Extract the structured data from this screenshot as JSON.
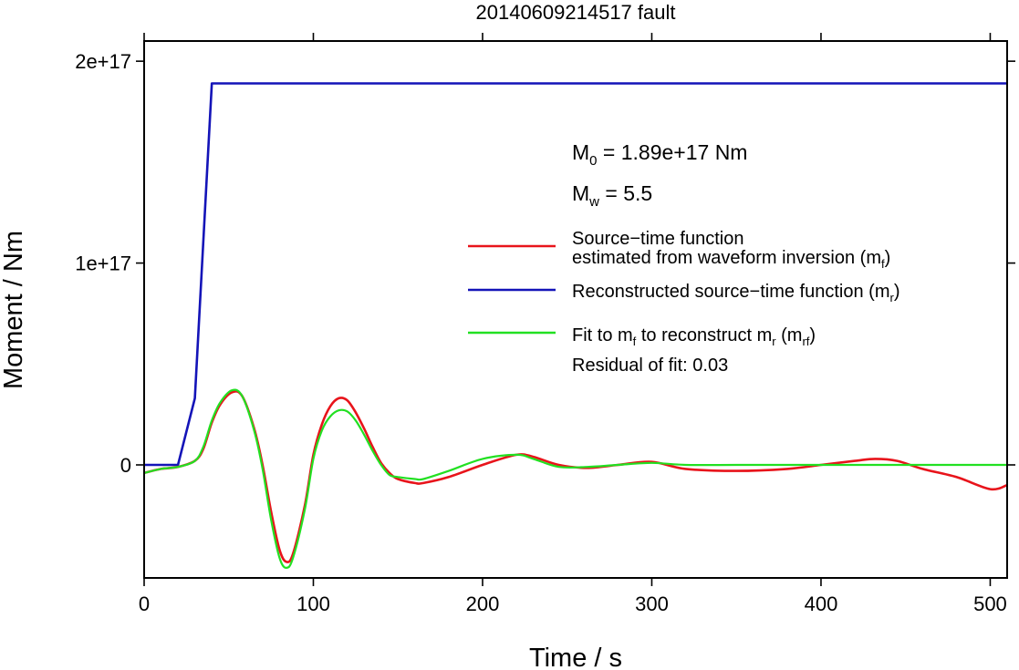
{
  "chart_data": {
    "type": "line",
    "title": "20140609214517 fault",
    "xlabel": "Time / s",
    "ylabel": "Moment / Nm",
    "xlim": [
      0,
      510
    ],
    "ylim": [
      -5.6e+16,
      2.1e+17
    ],
    "grid": false,
    "x_ticks": [
      {
        "value": 0,
        "label": "0"
      },
      {
        "value": 100,
        "label": "100"
      },
      {
        "value": 200,
        "label": "200"
      },
      {
        "value": 300,
        "label": "300"
      },
      {
        "value": 400,
        "label": "400"
      },
      {
        "value": 500,
        "label": "500"
      }
    ],
    "x_top_ticks": [
      0,
      100,
      200,
      300,
      400,
      500
    ],
    "y_ticks": [
      {
        "value": 0,
        "label": "0"
      },
      {
        "value": 1e+17,
        "label": "1e+17"
      },
      {
        "value": 2e+17,
        "label": "2e+17"
      }
    ],
    "annotations": {
      "m0": {
        "sym": "M",
        "sub": "0",
        "rest": " = 1.89e+17 Nm"
      },
      "mw": {
        "sym": "M",
        "sub": "w",
        "rest": " = 5.5"
      },
      "residual": "Residual of fit: 0.03"
    },
    "legend_position": "right",
    "series": [
      {
        "key": "mf",
        "color": "#e8141b",
        "legend": {
          "line1": "Source−time function",
          "line2_a": "estimated from waveform inversion (m",
          "line2_sub": "f",
          "line2_b": ")"
        },
        "x": [
          0,
          10,
          20,
          30,
          35,
          40,
          45,
          52,
          58,
          65,
          70,
          75,
          80,
          84,
          88,
          95,
          100,
          105,
          110,
          115,
          120,
          125,
          130,
          135,
          140,
          145,
          150,
          160,
          165,
          180,
          200,
          220,
          230,
          245,
          262,
          280,
          300,
          320,
          350,
          380,
          400,
          420,
          432,
          445,
          460,
          480,
          500,
          510
        ],
        "y": [
          -4000000000000000.0,
          -2000000000000000.0,
          -1000000000000000.0,
          2000000000000000.0,
          8000000000000000.0,
          2.1e+16,
          3e+16,
          3.6e+16,
          3.4e+16,
          1.8e+16,
          0,
          -2.3e+16,
          -4.2e+16,
          -4.8e+16,
          -4.4e+16,
          -2e+16,
          5000000000000000.0,
          2e+16,
          2.9e+16,
          3.3e+16,
          3.2e+16,
          2.6e+16,
          1.8e+16,
          9000000000000000.0,
          1000000000000000.0,
          -4000000000000000.0,
          -7000000000000000.0,
          -9000000000000000.0,
          -9000000000000000.0,
          -6000000000000000.0,
          0,
          5000000000000000.0,
          4000000000000000.0,
          0,
          -1500000000000000.0,
          0,
          1500000000000000.0,
          -2000000000000000.0,
          -3000000000000000.0,
          -2000000000000000.0,
          0,
          2000000000000000.0,
          3000000000000000.0,
          2000000000000000.0,
          -2000000000000000.0,
          -6000000000000000.0,
          -1.2e+16,
          -1e+16
        ]
      },
      {
        "key": "mr",
        "color": "#1414b8",
        "legend": {
          "a": "Reconstructed source−time function (m",
          "sub": "r",
          "b": ")"
        },
        "x": [
          0,
          20,
          30,
          40,
          510
        ],
        "y": [
          0,
          0,
          3.3e+16,
          1.89e+17,
          1.89e+17
        ]
      },
      {
        "key": "mrf",
        "color": "#22e022",
        "legend": {
          "a": "Fit to m",
          "sub1": "f",
          "b": " to reconstruct m",
          "sub2": "r",
          "c": " (m",
          "sub3": "rf",
          "d": ")"
        },
        "x": [
          0,
          10,
          20,
          30,
          35,
          40,
          45,
          52,
          58,
          65,
          70,
          75,
          80,
          84,
          88,
          95,
          100,
          105,
          110,
          115,
          120,
          125,
          130,
          135,
          140,
          145,
          150,
          160,
          165,
          180,
          200,
          220,
          230,
          245,
          262,
          280,
          300,
          320,
          350,
          380,
          400,
          420,
          450,
          480,
          510
        ],
        "y": [
          -4000000000000000.0,
          -2000000000000000.0,
          -1000000000000000.0,
          2000000000000000.0,
          9000000000000000.0,
          2.2e+16,
          3.1e+16,
          3.7e+16,
          3.4e+16,
          1.7e+16,
          -2000000000000000.0,
          -2.7e+16,
          -4.6e+16,
          -5.1e+16,
          -4.6e+16,
          -2.2e+16,
          3000000000000000.0,
          1.7e+16,
          2.4e+16,
          2.7e+16,
          2.65e+16,
          2.2e+16,
          1.5e+16,
          7000000000000000.0,
          0,
          -5000000000000000.0,
          -6000000000000000.0,
          -7000000000000000.0,
          -7000000000000000.0,
          -3000000000000000.0,
          3000000000000000.0,
          5000000000000000.0,
          3000000000000000.0,
          -1000000000000000.0,
          -1000000000000000.0,
          0,
          1000000000000000.0,
          0,
          0,
          0,
          0,
          0,
          0,
          0,
          0
        ]
      }
    ]
  }
}
